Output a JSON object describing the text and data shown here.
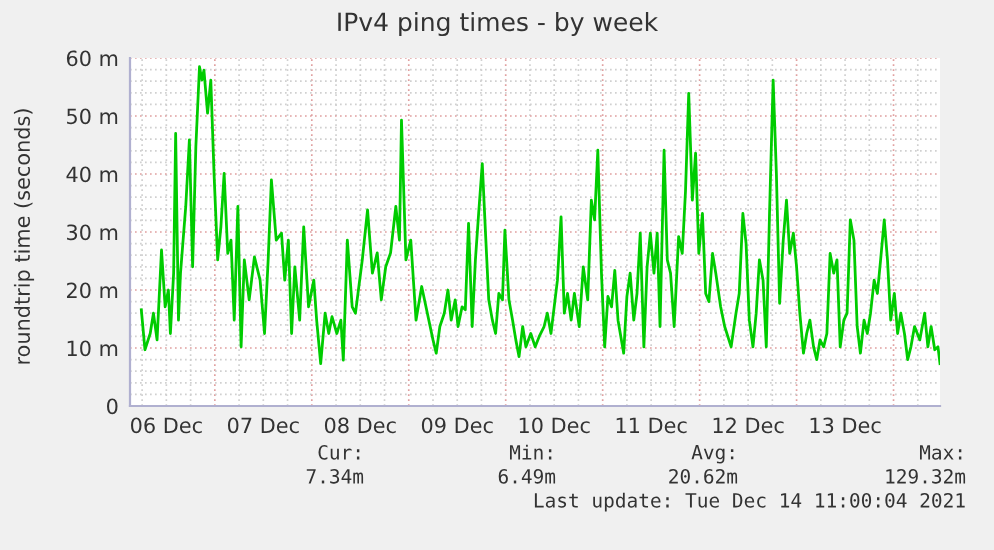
{
  "chart_data": {
    "type": "line",
    "title": "IPv4 ping times - by week",
    "ylabel": "roundtrip time (seconds)",
    "x": [
      "2021-12-06T05:48",
      "2021-12-06T06:42",
      "2021-12-06T08:00",
      "2021-12-06T08:48",
      "2021-12-06T09:42",
      "2021-12-06T10:48",
      "2021-12-06T11:42",
      "2021-12-06T12:30",
      "2021-12-06T13:00",
      "2021-12-06T13:48",
      "2021-12-06T14:18",
      "2021-12-06T15:00",
      "2021-12-06T15:30",
      "2021-12-06T16:48",
      "2021-12-06T17:42",
      "2021-12-06T18:30",
      "2021-12-06T19:18",
      "2021-12-06T20:12",
      "2021-12-06T20:48",
      "2021-12-06T21:18",
      "2021-12-06T22:12",
      "2021-12-06T23:00",
      "2021-12-06T23:48",
      "2021-12-07T00:42",
      "2021-12-07T01:30",
      "2021-12-07T02:18",
      "2021-12-07T03:12",
      "2021-12-07T04:00",
      "2021-12-07T04:48",
      "2021-12-07T05:42",
      "2021-12-07T06:30",
      "2021-12-07T07:18",
      "2021-12-07T08:30",
      "2021-12-07T09:48",
      "2021-12-07T11:12",
      "2021-12-07T12:18",
      "2021-12-07T13:12",
      "2021-12-07T14:00",
      "2021-12-07T15:12",
      "2021-12-07T16:30",
      "2021-12-07T17:18",
      "2021-12-07T18:12",
      "2021-12-07T19:00",
      "2021-12-07T19:48",
      "2021-12-07T21:00",
      "2021-12-07T22:00",
      "2021-12-07T23:12",
      "2021-12-08T00:30",
      "2021-12-08T01:12",
      "2021-12-08T02:12",
      "2021-12-08T03:18",
      "2021-12-08T04:12",
      "2021-12-08T05:00",
      "2021-12-08T06:12",
      "2021-12-08T07:12",
      "2021-12-08T07:48",
      "2021-12-08T08:48",
      "2021-12-08T10:00",
      "2021-12-08T10:48",
      "2021-12-08T12:30",
      "2021-12-08T13:48",
      "2021-12-08T15:00",
      "2021-12-08T16:12",
      "2021-12-08T17:12",
      "2021-12-08T18:18",
      "2021-12-08T19:30",
      "2021-12-08T20:48",
      "2021-12-08T21:42",
      "2021-12-08T22:12",
      "2021-12-08T23:18",
      "2021-12-09T00:30",
      "2021-12-09T01:48",
      "2021-12-09T03:12",
      "2021-12-09T06:00",
      "2021-12-09T06:48",
      "2021-12-09T07:42",
      "2021-12-09T08:48",
      "2021-12-09T09:42",
      "2021-12-09T10:30",
      "2021-12-09T11:30",
      "2021-12-09T12:12",
      "2021-12-09T13:12",
      "2021-12-09T14:00",
      "2021-12-09T14:48",
      "2021-12-09T15:42",
      "2021-12-09T16:30",
      "2021-12-09T17:18",
      "2021-12-09T18:12",
      "2021-12-09T19:00",
      "2021-12-09T19:48",
      "2021-12-09T20:42",
      "2021-12-09T21:30",
      "2021-12-09T22:18",
      "2021-12-09T23:12",
      "2021-12-09T23:48",
      "2021-12-10T00:48",
      "2021-12-10T01:42",
      "2021-12-10T02:30",
      "2021-12-10T03:18",
      "2021-12-10T04:12",
      "2021-12-10T05:00",
      "2021-12-10T06:12",
      "2021-12-10T07:18",
      "2021-12-10T08:18",
      "2021-12-10T09:30",
      "2021-12-10T10:18",
      "2021-12-10T11:12",
      "2021-12-10T12:00",
      "2021-12-10T12:48",
      "2021-12-10T13:42",
      "2021-12-10T14:30",
      "2021-12-10T15:18",
      "2021-12-10T16:12",
      "2021-12-10T17:00",
      "2021-12-10T18:12",
      "2021-12-10T19:12",
      "2021-12-10T20:18",
      "2021-12-10T21:12",
      "2021-12-10T22:00",
      "2021-12-10T22:48",
      "2021-12-10T23:42",
      "2021-12-11T00:30",
      "2021-12-11T01:18",
      "2021-12-11T02:12",
      "2021-12-11T03:00",
      "2021-12-11T03:48",
      "2021-12-11T05:12",
      "2021-12-11T06:00",
      "2021-12-11T06:48",
      "2021-12-11T07:42",
      "2021-12-11T08:30",
      "2021-12-11T09:18",
      "2021-12-11T10:12",
      "2021-12-11T11:00",
      "2021-12-11T11:48",
      "2021-12-11T12:42",
      "2021-12-11T13:30",
      "2021-12-11T14:12",
      "2021-12-11T15:12",
      "2021-12-11T16:00",
      "2021-12-11T16:48",
      "2021-12-11T17:42",
      "2021-12-11T18:48",
      "2021-12-11T19:42",
      "2021-12-11T20:30",
      "2021-12-11T21:18",
      "2021-12-11T22:12",
      "2021-12-11T23:00",
      "2021-12-11T23:48",
      "2021-12-12T00:42",
      "2021-12-12T01:30",
      "2021-12-12T02:18",
      "2021-12-12T03:12",
      "2021-12-12T04:00",
      "2021-12-12T05:12",
      "2021-12-12T06:12",
      "2021-12-12T07:48",
      "2021-12-12T09:00",
      "2021-12-12T09:48",
      "2021-12-12T10:42",
      "2021-12-12T11:30",
      "2021-12-12T12:18",
      "2021-12-12T13:12",
      "2021-12-12T14:00",
      "2021-12-12T14:48",
      "2021-12-12T15:42",
      "2021-12-12T16:30",
      "2021-12-12T17:18",
      "2021-12-12T18:12",
      "2021-12-12T19:00",
      "2021-12-12T19:48",
      "2021-12-12T20:42",
      "2021-12-12T21:30",
      "2021-12-12T22:18",
      "2021-12-12T23:12",
      "2021-12-13T00:00",
      "2021-12-13T00:48",
      "2021-12-13T01:42",
      "2021-12-13T02:30",
      "2021-12-13T03:18",
      "2021-12-13T04:12",
      "2021-12-13T05:00",
      "2021-12-13T05:48",
      "2021-12-13T06:42",
      "2021-12-13T07:30",
      "2021-12-13T08:18",
      "2021-12-13T09:12",
      "2021-12-13T10:00",
      "2021-12-13T10:48",
      "2021-12-13T11:42",
      "2021-12-13T12:30",
      "2021-12-13T13:18",
      "2021-12-13T14:12",
      "2021-12-13T15:00",
      "2021-12-13T15:48",
      "2021-12-13T16:42",
      "2021-12-13T17:30",
      "2021-12-13T18:18",
      "2021-12-13T19:12",
      "2021-12-13T20:00",
      "2021-12-13T20:48",
      "2021-12-13T21:42",
      "2021-12-13T22:30",
      "2021-12-13T23:18",
      "2021-12-14T00:12",
      "2021-12-14T01:00",
      "2021-12-14T01:48",
      "2021-12-14T02:42",
      "2021-12-14T03:30",
      "2021-12-14T04:18",
      "2021-12-14T05:12",
      "2021-12-14T06:30",
      "2021-12-14T07:42",
      "2021-12-14T08:30",
      "2021-12-14T09:18",
      "2021-12-14T10:12",
      "2021-12-14T11:00",
      "2021-12-14T11:30"
    ],
    "series": [
      {
        "color": "#00cc00",
        "values": [
          16.6,
          9.7,
          12.5,
          16,
          11.4,
          26.9,
          17.1,
          20,
          12.5,
          22.9,
          47,
          14.8,
          22.9,
          34.4,
          45.9,
          24,
          44.7,
          58.5,
          56.2,
          57.9,
          50.5,
          56.2,
          40.1,
          25.2,
          30.9,
          40.1,
          26.3,
          28.6,
          14.8,
          34.4,
          10.2,
          25.2,
          18.3,
          25.7,
          21.7,
          12.5,
          25.2,
          39,
          28.6,
          29.8,
          21.7,
          28.6,
          12.5,
          24,
          14.8,
          30.9,
          17.1,
          21.7,
          14.8,
          7.3,
          16,
          12.5,
          15.4,
          12.5,
          14.8,
          7.9,
          28.6,
          17.1,
          16,
          25.2,
          33.8,
          22.9,
          26.4,
          18.3,
          24,
          26.4,
          34.4,
          28.6,
          49.3,
          25.2,
          28.6,
          14.8,
          20.6,
          11.4,
          9.1,
          13.7,
          16,
          20,
          14.8,
          18.3,
          13.7,
          17.1,
          16.6,
          31.5,
          13.7,
          25.2,
          33.2,
          41.8,
          29.8,
          18.3,
          14.8,
          12.5,
          19.4,
          18.3,
          30.3,
          18.3,
          14.8,
          11.4,
          8.5,
          13.7,
          10.2,
          12.5,
          10.2,
          12,
          13.7,
          16,
          12.5,
          17.1,
          21.7,
          32.6,
          16,
          19.4,
          14.8,
          19.4,
          13.7,
          24,
          18.3,
          35.5,
          32.1,
          44.1,
          22.9,
          10.2,
          18.9,
          17.1,
          23.4,
          14.8,
          9.1,
          18.9,
          22.9,
          14.8,
          19.4,
          29.8,
          10.2,
          24,
          29.8,
          22.9,
          29.8,
          13.7,
          44.1,
          25.2,
          22.9,
          13.7,
          29.2,
          26.3,
          37,
          53.9,
          35.5,
          43.6,
          26.3,
          33.2,
          19.4,
          18,
          26.3,
          22.9,
          17.1,
          13.7,
          10.2,
          16,
          19.4,
          33.2,
          28,
          14.8,
          10.2,
          16,
          25.2,
          21.7,
          10.2,
          33.2,
          56.2,
          40.1,
          17.7,
          28.6,
          35.5,
          26.3,
          29.8,
          24,
          16,
          9.1,
          12.5,
          14.8,
          10.2,
          8,
          11.4,
          10.2,
          12.5,
          26.3,
          22.9,
          25.2,
          10.2,
          14.8,
          16,
          32.1,
          28.6,
          13.7,
          9.1,
          14.8,
          12.5,
          16,
          21.7,
          19.4,
          25.2,
          32.1,
          25.2,
          14.8,
          19.4,
          12.5,
          16,
          12.5,
          8,
          10.2,
          13.7,
          11.4,
          16,
          10.2,
          13.7,
          9.7,
          10.2,
          7.3
        ]
      }
    ],
    "xlim": [
      "2021-12-06T03:00",
      "2021-12-14T11:30"
    ],
    "xticks": [
      {
        "value": "2021-12-06T12:00",
        "label": "06 Dec"
      },
      {
        "value": "2021-12-07T12:00",
        "label": "07 Dec"
      },
      {
        "value": "2021-12-08T12:00",
        "label": "08 Dec"
      },
      {
        "value": "2021-12-09T12:00",
        "label": "09 Dec"
      },
      {
        "value": "2021-12-10T12:00",
        "label": "10 Dec"
      },
      {
        "value": "2021-12-11T12:00",
        "label": "11 Dec"
      },
      {
        "value": "2021-12-12T12:00",
        "label": "12 Dec"
      },
      {
        "value": "2021-12-13T12:00",
        "label": "13 Dec"
      }
    ],
    "ylim": [
      0,
      60
    ],
    "yticks": [
      0,
      {
        "value": 10,
        "label": "10 m"
      },
      {
        "value": 20,
        "label": "20 m"
      },
      {
        "value": 30,
        "label": "30 m"
      },
      {
        "value": 40,
        "label": "40 m"
      },
      {
        "value": 50,
        "label": "50 m"
      },
      {
        "value": 60,
        "label": "60 m"
      }
    ],
    "grid": true,
    "annotations": [
      "Cur:",
      "7.34m",
      "Min:",
      "6.49m",
      "Avg:",
      "20.62m",
      "Max:",
      "129.32m",
      "Last update: Tue Dec 14 11:00:04 2021"
    ]
  }
}
